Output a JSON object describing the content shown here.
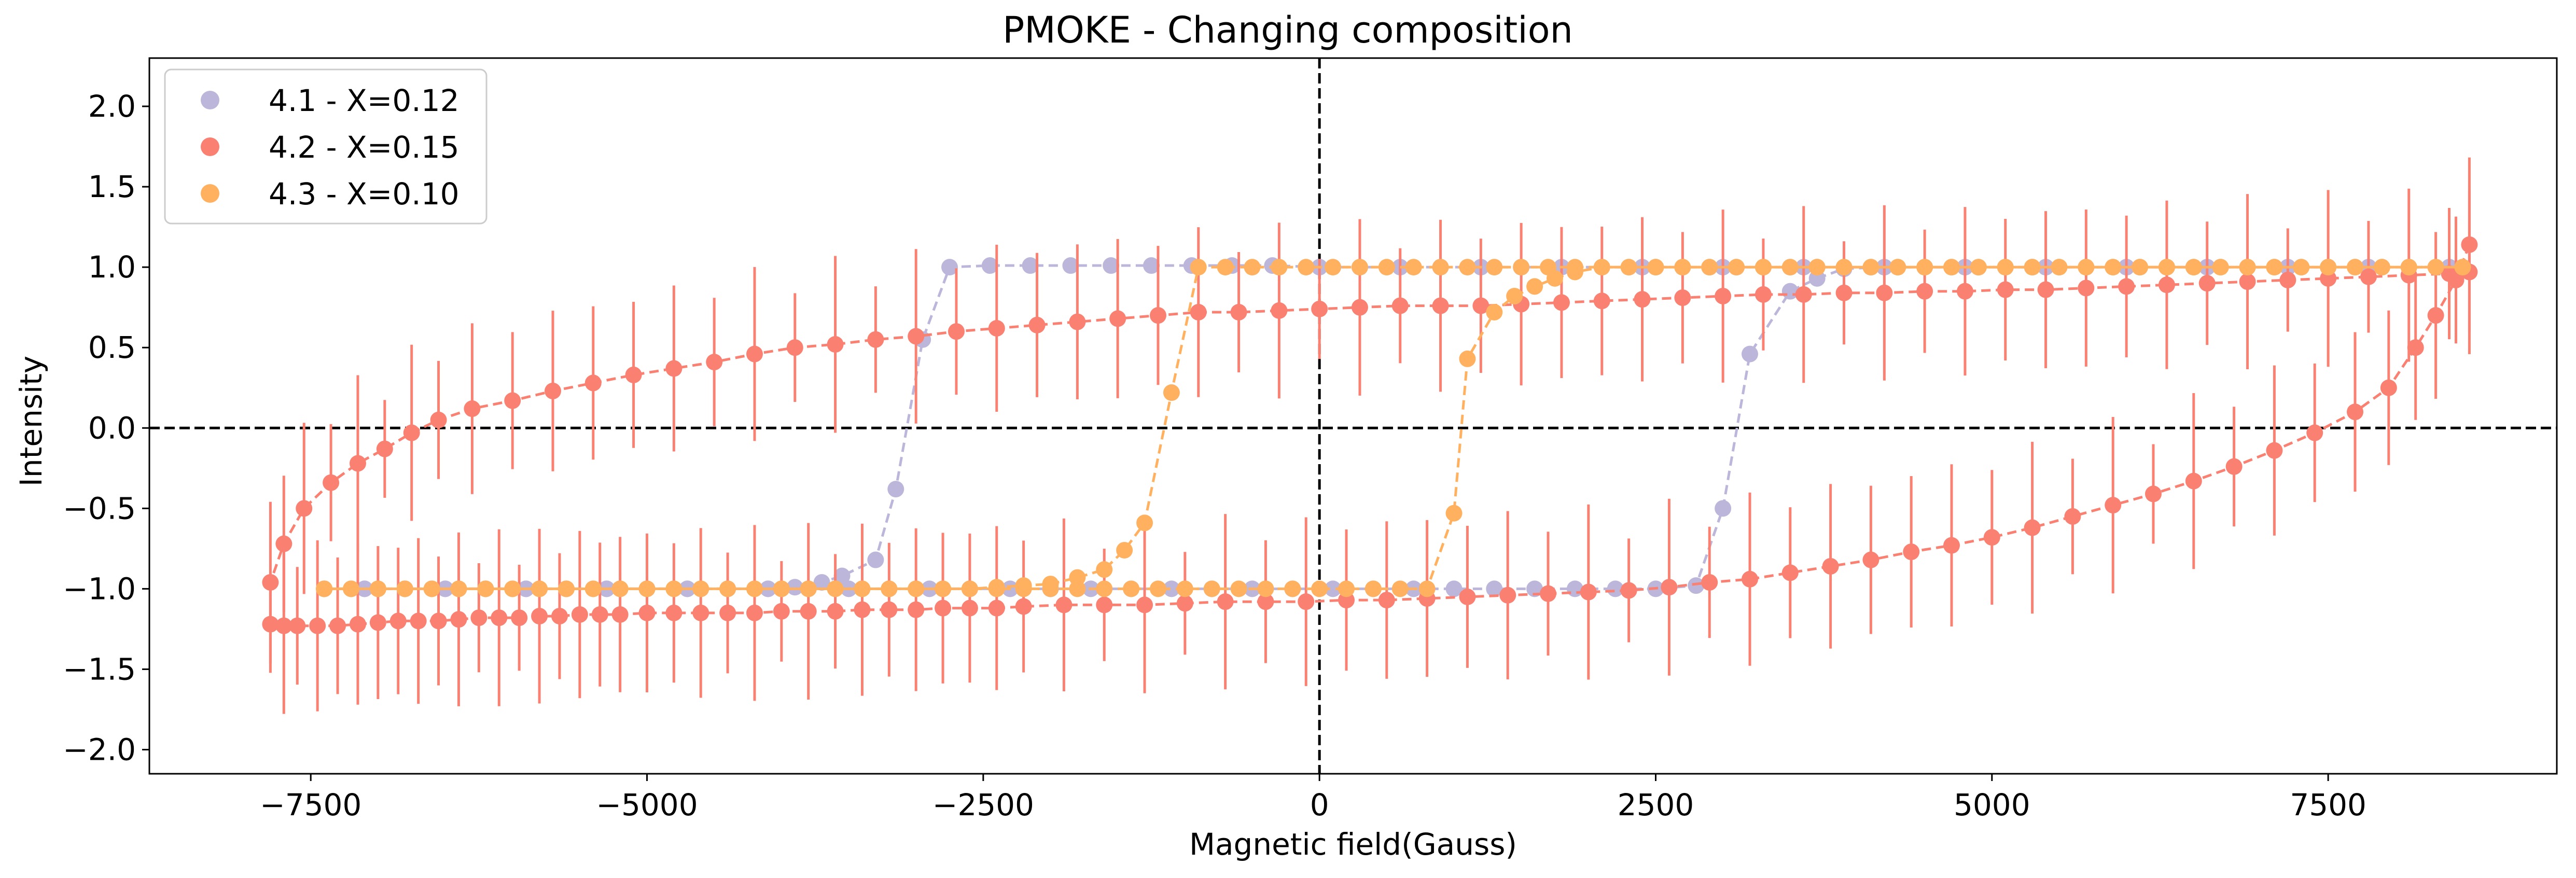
{
  "chart_data": {
    "type": "scatter",
    "title": "PMOKE - Changing composition",
    "xlabel": "Magnetic field(Gauss)",
    "ylabel": "Intensity",
    "xlim": [
      -8700,
      9200
    ],
    "ylim": [
      -2.15,
      2.3
    ],
    "xticks": [
      -7500,
      -5000,
      -2500,
      0,
      2500,
      5000,
      7500
    ],
    "xtick_labels": [
      "−7500",
      "−5000",
      "−2500",
      "0",
      "2500",
      "5000",
      "7500"
    ],
    "yticks": [
      -2.0,
      -1.5,
      -1.0,
      -0.5,
      0.0,
      0.5,
      1.0,
      1.5,
      2.0
    ],
    "ytick_labels": [
      "−2.0",
      "−1.5",
      "−1.0",
      "−0.5",
      "0.0",
      "0.5",
      "1.0",
      "1.5",
      "2.0"
    ],
    "grid": false,
    "legend_position": "top-left",
    "reference_lines": [
      {
        "axis": "y",
        "value": 0
      },
      {
        "axis": "x",
        "value": 0
      }
    ],
    "series": [
      {
        "name": "4.1 - X=0.12",
        "color": "#bcb6db",
        "branches": [
          {
            "x": [
              -7400,
              -7100,
              -6800,
              -6500,
              -6200,
              -5900,
              -5600,
              -5300,
              -5000,
              -4700,
              -4400,
              -4100,
              -3900,
              -3700,
              -3550,
              -3300,
              -3150,
              -2950,
              -2750,
              -2450,
              -2150,
              -1850,
              -1550,
              -1250,
              -950,
              -650,
              -350,
              0,
              300,
              600,
              900,
              1200,
              1500,
              1800,
              2100,
              2400,
              2700,
              3000,
              3300,
              3600,
              3900,
              4200,
              4500,
              4800,
              5100,
              5400,
              5700,
              6000,
              6300,
              6600,
              6900,
              7200,
              7500,
              7800,
              8100,
              8400
            ],
            "y": [
              -1.0,
              -1.0,
              -1.0,
              -1.0,
              -1.0,
              -1.0,
              -1.0,
              -1.0,
              -1.0,
              -1.0,
              -1.0,
              -1.0,
              -0.99,
              -0.96,
              -0.92,
              -0.82,
              -0.38,
              0.55,
              1.0,
              1.01,
              1.01,
              1.01,
              1.01,
              1.01,
              1.01,
              1.01,
              1.01,
              1.0,
              1.0,
              1.0,
              1.0,
              1.0,
              1.0,
              1.0,
              1.0,
              1.0,
              1.0,
              1.0,
              1.0,
              1.0,
              1.0,
              1.0,
              1.0,
              1.0,
              1.0,
              1.0,
              1.0,
              1.0,
              1.0,
              1.0,
              1.0,
              1.0,
              1.0,
              1.0,
              1.0,
              1.0
            ]
          },
          {
            "x": [
              8400,
              8100,
              7800,
              7500,
              7200,
              6900,
              6600,
              6300,
              6000,
              5700,
              5400,
              5100,
              4800,
              4500,
              4200,
              3900,
              3700,
              3500,
              3200,
              3000,
              2800,
              2500,
              2200,
              1900,
              1600,
              1300,
              1000,
              700,
              400,
              100,
              -200,
              -500,
              -800,
              -1100,
              -1400,
              -1700,
              -2000,
              -2300,
              -2600,
              -2900,
              -3200,
              -3500,
              -3800,
              -4100,
              -4400,
              -4700,
              -5000,
              -5300,
              -5600,
              -5900,
              -6200,
              -6500,
              -6800,
              -7100,
              -7400
            ],
            "y": [
              1.0,
              1.0,
              1.0,
              1.0,
              1.0,
              1.0,
              1.0,
              1.0,
              1.0,
              1.0,
              1.0,
              1.0,
              1.0,
              1.0,
              1.0,
              0.99,
              0.93,
              0.85,
              0.46,
              -0.5,
              -0.98,
              -1.0,
              -1.0,
              -1.0,
              -1.0,
              -1.0,
              -1.0,
              -1.0,
              -1.0,
              -1.0,
              -1.0,
              -1.0,
              -1.0,
              -1.0,
              -1.0,
              -1.0,
              -1.0,
              -1.0,
              -1.0,
              -1.0,
              -1.0,
              -1.0,
              -1.0,
              -1.0,
              -1.0,
              -1.0,
              -1.0,
              -1.0,
              -1.0,
              -1.0,
              -1.0,
              -1.0,
              -1.0,
              -1.0,
              -1.0
            ]
          }
        ]
      },
      {
        "name": "4.2 - X=0.15",
        "color": "#fa8072",
        "branches": [
          {
            "x": [
              -7800,
              -7700,
              -7600,
              -7450,
              -7300,
              -7150,
              -7000,
              -6850,
              -6700,
              -6550,
              -6400,
              -6250,
              -6100,
              -5950,
              -5800,
              -5650,
              -5500,
              -5350,
              -5200,
              -5000,
              -4800,
              -4600,
              -4400,
              -4200,
              -4000,
              -3800,
              -3600,
              -3400,
              -3200,
              -3000,
              -2800,
              -2600,
              -2400,
              -2200,
              -1900,
              -1600,
              -1300,
              -1000,
              -700,
              -400,
              -100,
              200,
              500,
              800,
              1100,
              1400,
              1700,
              2000,
              2300,
              2600,
              2900,
              3200,
              3500,
              3800,
              4100,
              4400,
              4700,
              5000,
              5300,
              5600,
              5900,
              6200,
              6500,
              6800,
              7100,
              7400,
              7700,
              7950,
              8150,
              8300,
              8450,
              8550
            ],
            "y": [
              -1.22,
              -1.23,
              -1.23,
              -1.23,
              -1.23,
              -1.22,
              -1.21,
              -1.2,
              -1.2,
              -1.2,
              -1.19,
              -1.18,
              -1.18,
              -1.18,
              -1.17,
              -1.17,
              -1.16,
              -1.16,
              -1.16,
              -1.15,
              -1.15,
              -1.15,
              -1.15,
              -1.15,
              -1.14,
              -1.14,
              -1.14,
              -1.13,
              -1.13,
              -1.13,
              -1.12,
              -1.12,
              -1.12,
              -1.11,
              -1.1,
              -1.1,
              -1.1,
              -1.09,
              -1.08,
              -1.08,
              -1.08,
              -1.07,
              -1.07,
              -1.06,
              -1.05,
              -1.04,
              -1.03,
              -1.02,
              -1.01,
              -0.99,
              -0.96,
              -0.94,
              -0.9,
              -0.86,
              -0.82,
              -0.77,
              -0.73,
              -0.68,
              -0.62,
              -0.55,
              -0.48,
              -0.41,
              -0.33,
              -0.24,
              -0.14,
              -0.03,
              0.1,
              0.25,
              0.5,
              0.7,
              0.92,
              1.14
            ]
          },
          {
            "x": [
              8550,
              8400,
              8100,
              7800,
              7500,
              7200,
              6900,
              6600,
              6300,
              6000,
              5700,
              5400,
              5100,
              4800,
              4500,
              4200,
              3900,
              3600,
              3300,
              3000,
              2700,
              2400,
              2100,
              1800,
              1500,
              1200,
              900,
              600,
              300,
              0,
              -300,
              -600,
              -900,
              -1200,
              -1500,
              -1800,
              -2100,
              -2400,
              -2700,
              -3000,
              -3300,
              -3600,
              -3900,
              -4200,
              -4500,
              -4800,
              -5100,
              -5400,
              -5700,
              -6000,
              -6300,
              -6550,
              -6750,
              -6950,
              -7150,
              -7350,
              -7550,
              -7700,
              -7800
            ],
            "y": [
              0.97,
              0.96,
              0.95,
              0.94,
              0.93,
              0.92,
              0.91,
              0.9,
              0.89,
              0.88,
              0.87,
              0.86,
              0.86,
              0.85,
              0.85,
              0.84,
              0.84,
              0.83,
              0.83,
              0.82,
              0.81,
              0.8,
              0.79,
              0.78,
              0.77,
              0.76,
              0.76,
              0.76,
              0.75,
              0.74,
              0.73,
              0.72,
              0.72,
              0.7,
              0.68,
              0.66,
              0.64,
              0.62,
              0.6,
              0.57,
              0.55,
              0.52,
              0.5,
              0.46,
              0.41,
              0.37,
              0.33,
              0.28,
              0.23,
              0.17,
              0.12,
              0.05,
              -0.03,
              -0.13,
              -0.22,
              -0.34,
              -0.5,
              -0.72,
              -0.96
            ]
          }
        ],
        "error_bar_halfwidth": 0.55
      },
      {
        "name": "4.3 - X=0.10",
        "color": "#ffb160",
        "branches": [
          {
            "x": [
              -7400,
              -7200,
              -7000,
              -6800,
              -6600,
              -6400,
              -6200,
              -6000,
              -5800,
              -5600,
              -5400,
              -5200,
              -5000,
              -4800,
              -4600,
              -4400,
              -4200,
              -4000,
              -3800,
              -3600,
              -3400,
              -3200,
              -3000,
              -2800,
              -2600,
              -2400,
              -2200,
              -2000,
              -1800,
              -1600,
              -1450,
              -1300,
              -1100,
              -900,
              -700,
              -500,
              -300,
              -100,
              100,
              300,
              500,
              700,
              900,
              1100,
              1300,
              1500,
              1700,
              1900,
              2100,
              2300,
              2500,
              2700,
              2900,
              3100,
              3300,
              3500,
              3700,
              3900,
              4100,
              4300,
              4500,
              4700,
              4900,
              5100,
              5300,
              5500,
              5700,
              5900,
              6100,
              6300,
              6500,
              6700,
              6900,
              7100,
              7300,
              7500,
              7700,
              7900,
              8100,
              8300,
              8500
            ],
            "y": [
              -1.0,
              -1.0,
              -1.0,
              -1.0,
              -1.0,
              -1.0,
              -1.0,
              -1.0,
              -1.0,
              -1.0,
              -1.0,
              -1.0,
              -1.0,
              -1.0,
              -1.0,
              -1.0,
              -1.0,
              -1.0,
              -1.0,
              -1.0,
              -1.0,
              -1.0,
              -1.0,
              -1.0,
              -1.0,
              -0.99,
              -0.98,
              -0.97,
              -0.93,
              -0.88,
              -0.76,
              -0.59,
              0.22,
              1.0,
              1.0,
              1.0,
              1.0,
              1.0,
              1.0,
              1.0,
              1.0,
              1.0,
              1.0,
              1.0,
              1.0,
              1.0,
              1.0,
              1.0,
              1.0,
              1.0,
              1.0,
              1.0,
              1.0,
              1.0,
              1.0,
              1.0,
              1.0,
              1.0,
              1.0,
              1.0,
              1.0,
              1.0,
              1.0,
              1.0,
              1.0,
              1.0,
              1.0,
              1.0,
              1.0,
              1.0,
              1.0,
              1.0,
              1.0,
              1.0,
              1.0,
              1.0,
              1.0,
              1.0,
              1.0,
              1.0,
              1.0
            ]
          },
          {
            "x": [
              8500,
              8300,
              8100,
              7900,
              7700,
              7500,
              7300,
              7100,
              6900,
              6700,
              6500,
              6300,
              6100,
              5900,
              5700,
              5500,
              5300,
              5100,
              4900,
              4700,
              4500,
              4300,
              4100,
              3900,
              3700,
              3500,
              3300,
              3100,
              2900,
              2700,
              2500,
              2300,
              2100,
              1900,
              1750,
              1600,
              1450,
              1300,
              1100,
              1000,
              800,
              600,
              400,
              200,
              0,
              -200,
              -400,
              -600,
              -800,
              -1000,
              -1200,
              -1400,
              -1600,
              -1800,
              -2000,
              -2200,
              -2400,
              -2600,
              -2800,
              -3000,
              -3200,
              -3400,
              -3600,
              -3800,
              -4000,
              -4200,
              -4400,
              -4600,
              -4800,
              -5000,
              -5200,
              -5400,
              -5600,
              -5800,
              -6000,
              -6200,
              -6400,
              -6600,
              -6800,
              -7000,
              -7200,
              -7400
            ],
            "y": [
              1.0,
              1.0,
              1.0,
              1.0,
              1.0,
              1.0,
              1.0,
              1.0,
              1.0,
              1.0,
              1.0,
              1.0,
              1.0,
              1.0,
              1.0,
              1.0,
              1.0,
              1.0,
              1.0,
              1.0,
              1.0,
              1.0,
              1.0,
              1.0,
              1.0,
              1.0,
              1.0,
              1.0,
              1.0,
              1.0,
              1.0,
              1.0,
              1.0,
              0.97,
              0.93,
              0.88,
              0.82,
              0.72,
              0.43,
              -0.53,
              -1.0,
              -1.0,
              -1.0,
              -1.0,
              -1.0,
              -1.0,
              -1.0,
              -1.0,
              -1.0,
              -1.0,
              -1.0,
              -1.0,
              -1.0,
              -1.0,
              -1.0,
              -1.0,
              -1.0,
              -1.0,
              -1.0,
              -1.0,
              -1.0,
              -1.0,
              -1.0,
              -1.0,
              -1.0,
              -1.0,
              -1.0,
              -1.0,
              -1.0,
              -1.0,
              -1.0,
              -1.0,
              -1.0,
              -1.0,
              -1.0,
              -1.0,
              -1.0,
              -1.0,
              -1.0,
              -1.0,
              -1.0,
              -1.0
            ]
          }
        ]
      }
    ]
  }
}
